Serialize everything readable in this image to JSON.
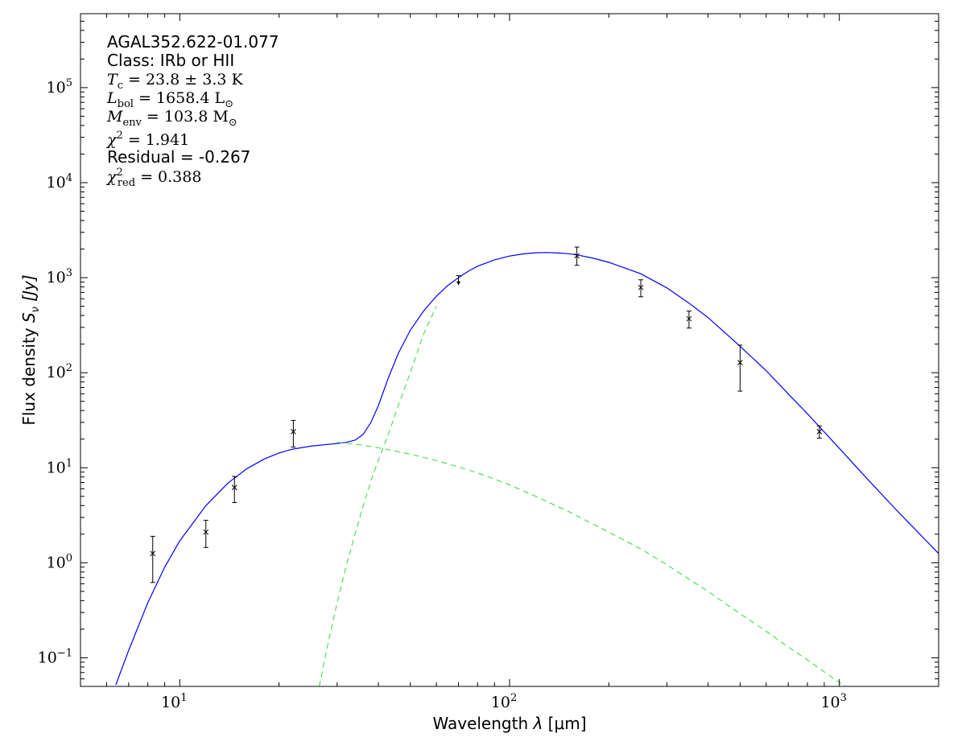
{
  "chart_data": {
    "type": "scatter",
    "title": "",
    "xlabel_prefix": "Wavelength ",
    "xlabel_symbol": "λ",
    "xlabel_unit": " [μm]",
    "ylabel_prefix": "Flux density ",
    "ylabel_symbol": "S",
    "ylabel_sub": "ν",
    "ylabel_unit": " [Jy]",
    "xscale": "log",
    "yscale": "log",
    "xlim": [
      5,
      2000
    ],
    "ylim": [
      0.05,
      600000
    ],
    "xticks": [
      {
        "value": 10,
        "base": "10",
        "exp": "1"
      },
      {
        "value": 100,
        "base": "10",
        "exp": "2"
      },
      {
        "value": 1000,
        "base": "10",
        "exp": "3"
      }
    ],
    "yticks": [
      {
        "value": 0.1,
        "base": "10",
        "exp": "−1"
      },
      {
        "value": 1,
        "base": "10",
        "exp": "0"
      },
      {
        "value": 10,
        "base": "10",
        "exp": "1"
      },
      {
        "value": 100,
        "base": "10",
        "exp": "2"
      },
      {
        "value": 1000,
        "base": "10",
        "exp": "3"
      },
      {
        "value": 10000,
        "base": "10",
        "exp": "4"
      },
      {
        "value": 100000,
        "base": "10",
        "exp": "5"
      }
    ],
    "grid": false,
    "annotations": {
      "source": "AGAL352.622-01.077",
      "class_line": "Class: IRb or HII",
      "tc_value": " = 23.8 ± 3.3 K",
      "lbol_value": " = 1658.4 L",
      "menv_value": " = 103.8 M",
      "chi2_value": " = 1.941",
      "residual": "Residual = -0.267",
      "chi2red_value": " = 0.388"
    },
    "series": [
      {
        "kind": "points",
        "color": "#000000",
        "points": [
          {
            "x": 8.28,
            "y": 1.25,
            "err_low": 0.62,
            "err_high": 1.9
          },
          {
            "x": 12.0,
            "y": 2.1,
            "err_low": 1.45,
            "err_high": 2.8
          },
          {
            "x": 14.65,
            "y": 6.2,
            "err_low": 4.3,
            "err_high": 8.1
          },
          {
            "x": 22.1,
            "y": 24,
            "err_low": 16.5,
            "err_high": 31.5
          },
          {
            "x": 160,
            "y": 1700,
            "err_low": 1350,
            "err_high": 2100
          },
          {
            "x": 250,
            "y": 790,
            "err_low": 630,
            "err_high": 950
          },
          {
            "x": 350,
            "y": 370,
            "err_low": 295,
            "err_high": 445
          },
          {
            "x": 500,
            "y": 128,
            "err_low": 64,
            "err_high": 195
          },
          {
            "x": 870,
            "y": 24,
            "err_low": 20.5,
            "err_high": 27.5
          }
        ]
      },
      {
        "kind": "upper_limit",
        "color": "#000000",
        "points": [
          {
            "x": 70,
            "y": 1050
          }
        ]
      },
      {
        "kind": "total_fit",
        "color": "#0000ff",
        "x": [
          6.4,
          7,
          8,
          9,
          10,
          12,
          14,
          16,
          18,
          20,
          22,
          25,
          28,
          30,
          32,
          34,
          36,
          38,
          40,
          43,
          46,
          50,
          55,
          60,
          65,
          70,
          75,
          80,
          90,
          100,
          110,
          120,
          130,
          140,
          150,
          160,
          180,
          200,
          250,
          300,
          350,
          400,
          500,
          600,
          700,
          800,
          1000,
          1200,
          1500,
          2000
        ],
        "y": [
          0.052,
          0.12,
          0.38,
          0.9,
          1.7,
          4.0,
          6.9,
          9.8,
          12.3,
          14.3,
          15.7,
          16.9,
          17.6,
          18.0,
          18.5,
          19.5,
          22.5,
          30,
          45,
          90,
          160,
          280,
          450,
          640,
          830,
          1000,
          1170,
          1320,
          1540,
          1690,
          1780,
          1830,
          1840,
          1820,
          1790,
          1740,
          1600,
          1450,
          1100,
          780,
          540,
          380,
          190,
          105,
          60,
          37,
          16,
          8,
          3.5,
          1.25
        ]
      },
      {
        "kind": "warm_component",
        "color": "#33dd33",
        "x": [
          30,
          35,
          40,
          45,
          50,
          60,
          70,
          80,
          90,
          100,
          120,
          150,
          200,
          250,
          300,
          400,
          500,
          600,
          700,
          800,
          1000,
          1200,
          1400
        ],
        "y": [
          18.5,
          17.5,
          16.2,
          15.0,
          13.9,
          11.9,
          10.2,
          8.8,
          7.6,
          6.6,
          5.0,
          3.5,
          2.1,
          1.4,
          0.95,
          0.5,
          0.29,
          0.19,
          0.13,
          0.095,
          0.055,
          0.038,
          0.05
        ]
      },
      {
        "kind": "cold_component",
        "color": "#33dd33",
        "x": [
          26.5,
          28,
          30,
          32,
          34,
          36,
          38,
          40,
          43,
          46,
          50,
          55,
          60
        ],
        "y": [
          0.05,
          0.13,
          0.38,
          0.95,
          2.0,
          4.0,
          7.3,
          12,
          23,
          45,
          100,
          260,
          500
        ]
      }
    ]
  }
}
